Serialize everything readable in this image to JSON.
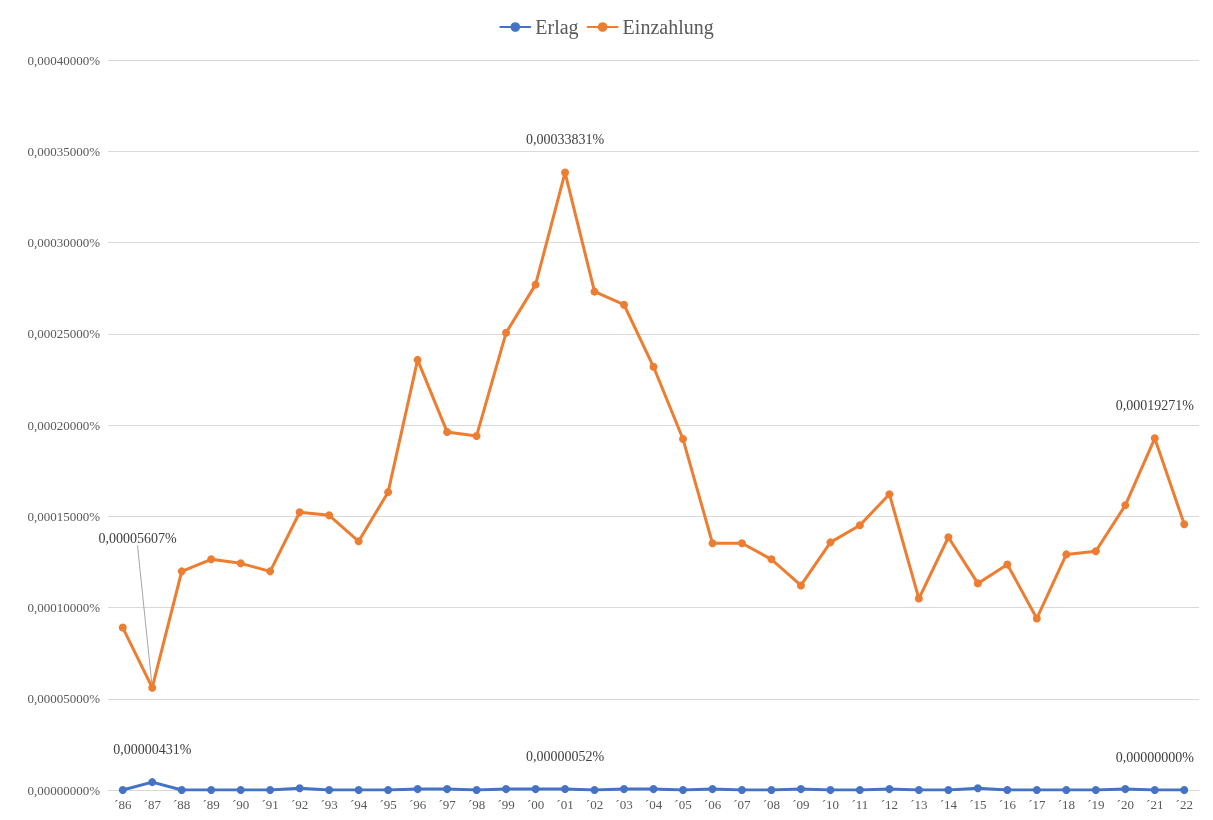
{
  "chart_data": {
    "type": "line",
    "categories": [
      "´86",
      "´87",
      "´88",
      "´89",
      "´90",
      "´91",
      "´92",
      "´93",
      "´94",
      "´95",
      "´96",
      "´97",
      "´98",
      "´99",
      "´00",
      "´01",
      "´02",
      "´03",
      "´04",
      "´05",
      "´06",
      "´07",
      "´08",
      "´09",
      "´10",
      "´11",
      "´12",
      "´13",
      "´14",
      "´15",
      "´16",
      "´17",
      "´18",
      "´19",
      "´20",
      "´21",
      "´22"
    ],
    "series": [
      {
        "name": "Erlag",
        "color": "#4472c4",
        "values": [
          0,
          4.31e-06,
          0,
          0,
          0,
          0,
          1e-06,
          0,
          0,
          0,
          5e-07,
          5e-07,
          0,
          5e-07,
          5e-07,
          5.2e-07,
          0,
          5e-07,
          5e-07,
          0,
          5e-07,
          0,
          0,
          5e-07,
          0,
          0,
          5e-07,
          0,
          0,
          1e-06,
          0,
          0,
          0,
          0,
          5e-07,
          0,
          0
        ],
        "value_labels": [
          null,
          "0,00000431%",
          null,
          null,
          null,
          null,
          null,
          null,
          null,
          null,
          null,
          null,
          null,
          null,
          null,
          "0,00000052%",
          null,
          null,
          null,
          null,
          null,
          null,
          null,
          null,
          null,
          null,
          null,
          null,
          null,
          null,
          null,
          null,
          null,
          null,
          null,
          "0,00000000%",
          null
        ]
      },
      {
        "name": "Einzahlung",
        "color": "#ed7d31",
        "values": [
          8.9e-05,
          5.607e-05,
          0.0001198,
          0.0001264,
          0.0001242,
          0.0001198,
          0.0001522,
          0.0001505,
          0.0001363,
          0.0001632,
          0.0002357,
          0.0001962,
          0.000194,
          0.0002505,
          0.0002769,
          0.00033831,
          0.0002731,
          0.0002659,
          0.0002319,
          0.0001923,
          0.0001352,
          0.0001352,
          0.0001264,
          0.0001121,
          0.0001357,
          0.0001451,
          0.0001621,
          0.0001049,
          0.0001385,
          0.0001132,
          0.0001236,
          9.4e-05,
          0.0001291,
          0.0001308,
          0.000156,
          0.00019271,
          0.0001456
        ],
        "value_labels": [
          null,
          "0,00005607%",
          null,
          null,
          null,
          null,
          null,
          null,
          null,
          null,
          null,
          null,
          null,
          null,
          null,
          "0,00033831%",
          null,
          null,
          null,
          null,
          null,
          null,
          null,
          null,
          null,
          null,
          null,
          null,
          null,
          null,
          null,
          null,
          null,
          null,
          null,
          "0,00019271%",
          null
        ]
      }
    ],
    "ylim": [
      0,
      0.0004
    ],
    "yticks": [
      {
        "value": 0,
        "label": "0,00000000%"
      },
      {
        "value": 5e-05,
        "label": "0,00005000%"
      },
      {
        "value": 0.0001,
        "label": "0,00010000%"
      },
      {
        "value": 0.00015,
        "label": "0,00015000%"
      },
      {
        "value": 0.0002,
        "label": "0,00020000%"
      },
      {
        "value": 0.00025,
        "label": "0,00025000%"
      },
      {
        "value": 0.0003,
        "label": "0,00030000%"
      },
      {
        "value": 0.00035,
        "label": "0,00035000%"
      },
      {
        "value": 0.0004,
        "label": "0,00040000%"
      }
    ],
    "grid": "y",
    "legend": "top",
    "marker": "circle",
    "line_style": "solid"
  }
}
